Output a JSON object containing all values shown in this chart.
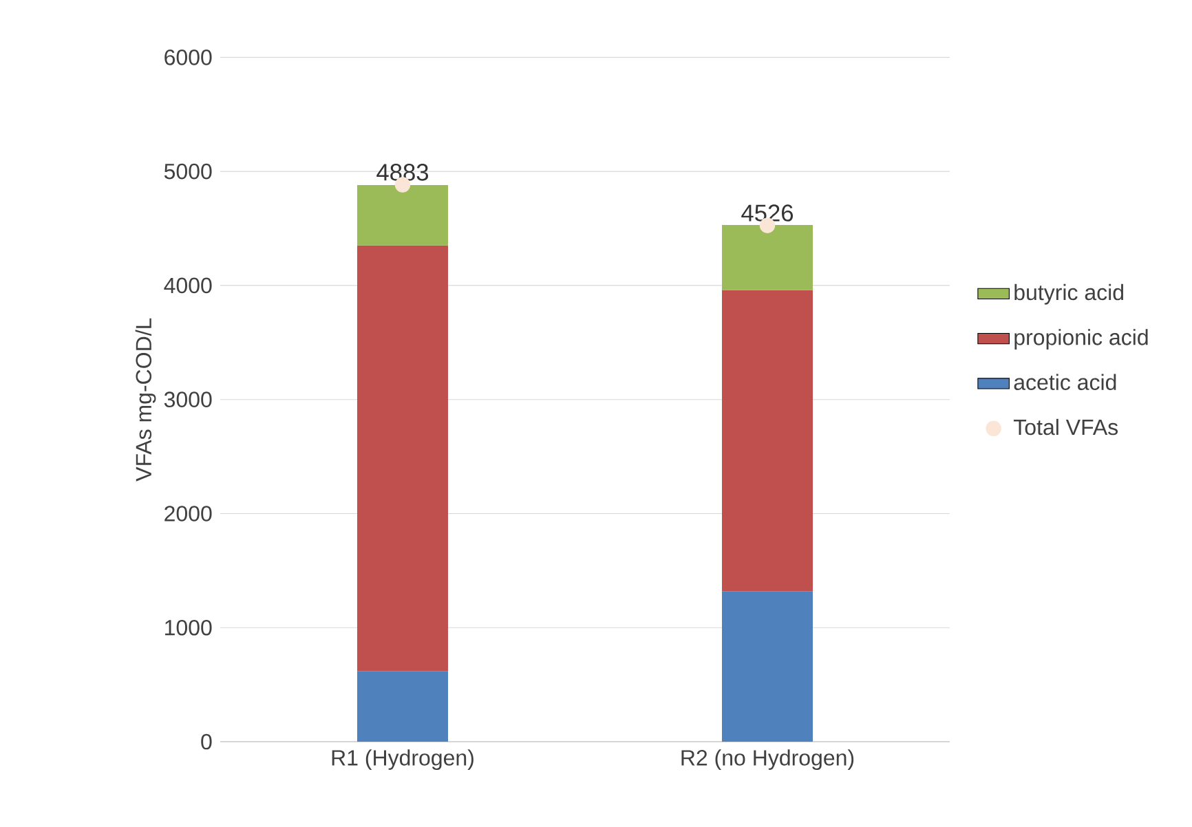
{
  "chart_data": {
    "type": "bar",
    "stacked": true,
    "ylabel": "VFAs mg-COD/L",
    "categories": [
      "R1 (Hydrogen)",
      "R2 (no Hydrogen)"
    ],
    "series": [
      {
        "name": "acetic acid",
        "color": "#4f81bd",
        "values": [
          620,
          1320
        ]
      },
      {
        "name": "propionic acid",
        "color": "#c0504d",
        "values": [
          3730,
          2640
        ]
      },
      {
        "name": "butyric acid",
        "color": "#9bbb59",
        "values": [
          530,
          570
        ]
      },
      {
        "name": "Total VFAs",
        "type": "scatter",
        "color": "#fbe5d6",
        "values": [
          4883,
          4526
        ],
        "value_labels": [
          "4883",
          "4526"
        ]
      }
    ],
    "ylim": [
      0,
      6000
    ],
    "yticks": [
      0,
      1000,
      2000,
      3000,
      4000,
      5000,
      6000
    ],
    "grid": "y",
    "legend": "right"
  }
}
